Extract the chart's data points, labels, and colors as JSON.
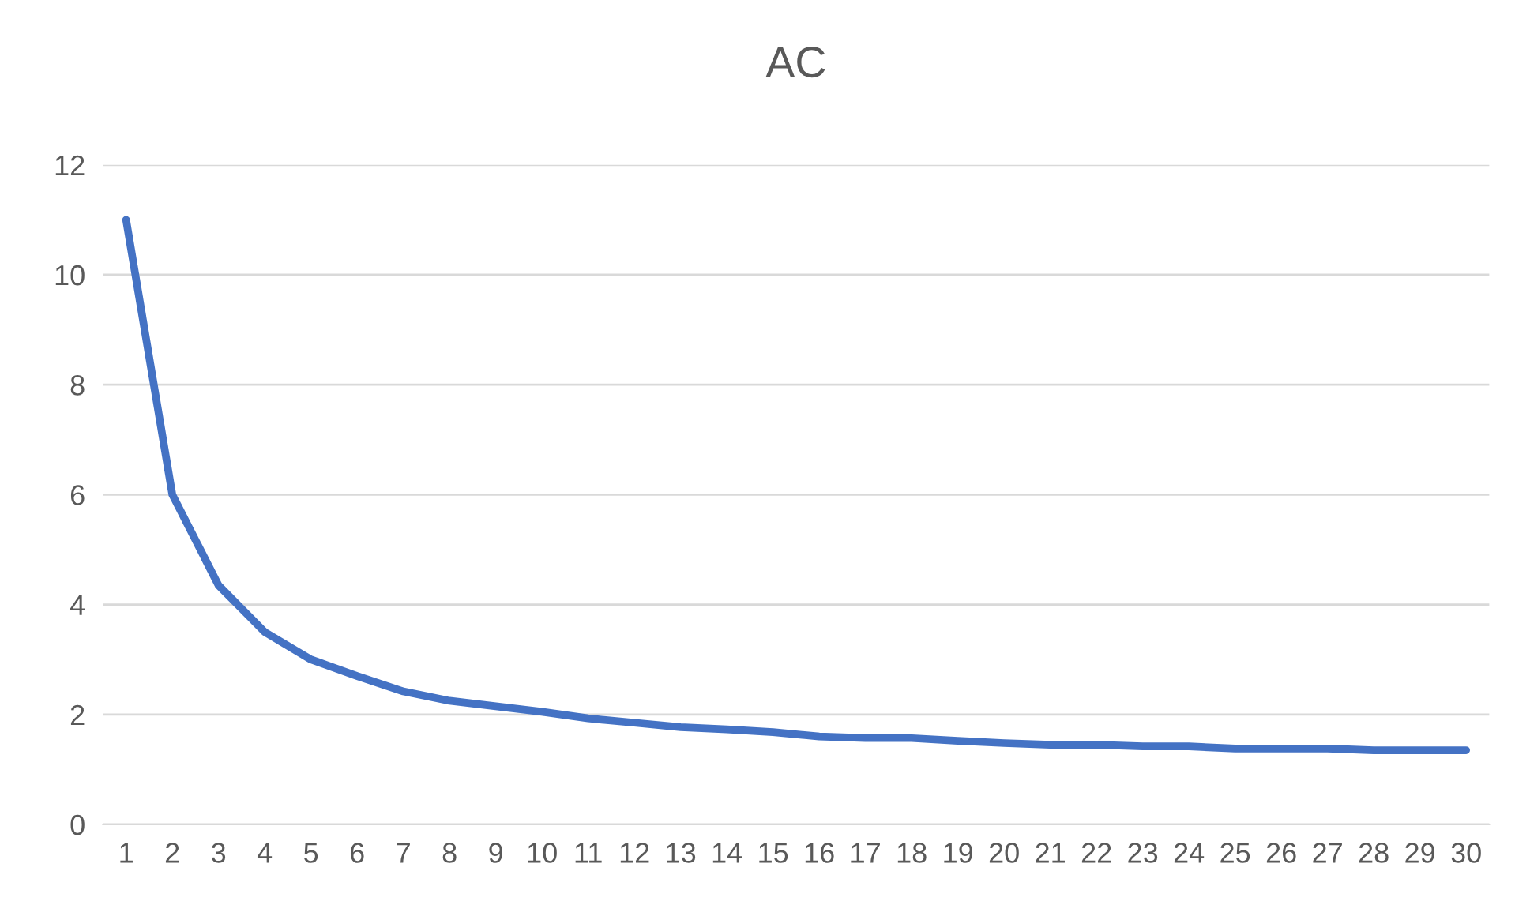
{
  "chart_data": {
    "type": "line",
    "title": "AC",
    "categories": [
      "1",
      "2",
      "3",
      "4",
      "5",
      "6",
      "7",
      "8",
      "9",
      "10",
      "11",
      "12",
      "13",
      "14",
      "15",
      "16",
      "17",
      "18",
      "19",
      "20",
      "21",
      "22",
      "23",
      "24",
      "25",
      "26",
      "27",
      "28",
      "29",
      "30"
    ],
    "series": [
      {
        "color": "#4472c4",
        "values": [
          11,
          6,
          4.35,
          3.5,
          3.0,
          2.7,
          2.42,
          2.25,
          2.15,
          2.05,
          1.93,
          1.85,
          1.77,
          1.73,
          1.68,
          1.6,
          1.57,
          1.57,
          1.52,
          1.48,
          1.45,
          1.45,
          1.42,
          1.42,
          1.38,
          1.38,
          1.38,
          1.35,
          1.35,
          1.35
        ]
      }
    ],
    "ylim": [
      0,
      12
    ],
    "yticks": [
      0,
      2,
      4,
      6,
      8,
      10,
      12
    ],
    "grid": "y",
    "marker": "none",
    "line_style": "solid"
  }
}
